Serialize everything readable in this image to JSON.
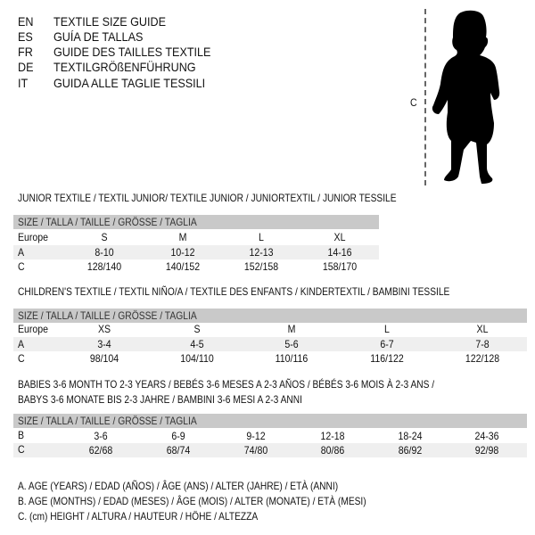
{
  "header": [
    {
      "code": "EN",
      "text": "TEXTILE SIZE GUIDE"
    },
    {
      "code": "ES",
      "text": "GUÍA DE TALLAS"
    },
    {
      "code": "FR",
      "text": "GUIDE DES TAILLES TEXTILE"
    },
    {
      "code": "DE",
      "text": "TEXTILGRÖßENFÜHRUNG"
    },
    {
      "code": "IT",
      "text": "GUIDA ALLE TAGLIE TESSILI"
    }
  ],
  "figure": {
    "label": "C",
    "icon": "child-silhouette-icon"
  },
  "size_header": "SIZE / TALLA / TAILLE / GRÖSSE / TAGLIA",
  "junior": {
    "title": "JUNIOR TEXTILE / TEXTIL JUNIOR/ TEXTILE JUNIOR / JUNIORTEXTIL / JUNIOR TESSILE",
    "rows": [
      {
        "label": "Europe",
        "values": [
          "S",
          "M",
          "L",
          "XL"
        ]
      },
      {
        "label": "A",
        "values": [
          "8-10",
          "10-12",
          "12-13",
          "14-16"
        ]
      },
      {
        "label": "C",
        "values": [
          "128/140",
          "140/152",
          "152/158",
          "158/170"
        ]
      }
    ]
  },
  "children": {
    "title": "CHILDREN'S TEXTILE / TEXTIL NIÑO/A / TEXTILE DES ENFANTS / KINDERTEXTIL / BAMBINI TESSILE",
    "rows": [
      {
        "label": "Europe",
        "values": [
          "XS",
          "S",
          "M",
          "L",
          "XL"
        ]
      },
      {
        "label": "A",
        "values": [
          "3-4",
          "4-5",
          "5-6",
          "6-7",
          "7-8"
        ]
      },
      {
        "label": "C",
        "values": [
          "98/104",
          "104/110",
          "110/116",
          "116/122",
          "122/128"
        ]
      }
    ]
  },
  "babies": {
    "title_line1": "BABIES 3-6 MONTH TO 2-3 YEARS / BEBÉS 3-6 MESES A 2-3 AÑOS / BÉBÉS 3-6 MOIS À 2-3 ANS /",
    "title_line2": "BABYS 3-6 MONATE BIS 2-3 JAHRE / BAMBINI 3-6 MESI A 2-3 ANNI",
    "rows": [
      {
        "label": "B",
        "values": [
          "3-6",
          "6-9",
          "9-12",
          "12-18",
          "18-24",
          "24-36"
        ]
      },
      {
        "label": "C",
        "values": [
          "62/68",
          "68/74",
          "74/80",
          "80/86",
          "86/92",
          "92/98"
        ]
      }
    ]
  },
  "legend": [
    "A. AGE (YEARS) / EDAD (AÑOS) / ÂGE (ANS) / ALTER (JAHRE) / ETÀ (ANNI)",
    "B. AGE (MONTHS) / EDAD (MESES) / ÂGE (MOIS) / ALTER (MONATE) / ETÀ (MESI)",
    "C. (cm) HEIGHT / ALTURA / HAUTEUR / HÖHE / ALTEZZA"
  ]
}
